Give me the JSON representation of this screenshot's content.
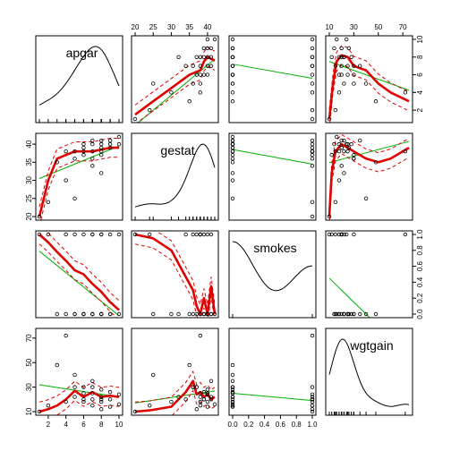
{
  "chart_data": {
    "type": "scatter-matrix",
    "variables": [
      {
        "name": "apgar",
        "ticks": [
          2,
          4,
          6,
          8,
          10
        ],
        "range": [
          1,
          10
        ]
      },
      {
        "name": "gestat",
        "ticks": [
          20,
          25,
          30,
          35,
          40
        ],
        "range": [
          20,
          42
        ]
      },
      {
        "name": "smokes",
        "ticks": [
          0.0,
          0.2,
          0.4,
          0.6,
          0.8,
          1.0
        ],
        "range": [
          0,
          1
        ]
      },
      {
        "name": "wgtgain",
        "ticks": [
          10,
          30,
          50,
          70
        ],
        "range": [
          10,
          75
        ]
      }
    ],
    "data": {
      "apgar": [
        1,
        2,
        4,
        4,
        5,
        5,
        5,
        6,
        6,
        6,
        7,
        7,
        7,
        7,
        8,
        8,
        8,
        8,
        8,
        9,
        9,
        9,
        10,
        10,
        3,
        7,
        8,
        6
      ],
      "gestat": [
        20,
        24,
        30,
        38,
        36,
        38,
        25,
        38,
        39,
        40,
        36,
        38,
        40,
        41,
        38,
        39,
        40,
        37,
        41,
        40,
        41,
        39,
        40,
        42,
        35,
        34,
        32,
        37
      ],
      "smokes": [
        1,
        1,
        0,
        1,
        0,
        1,
        0,
        0,
        1,
        0,
        1,
        0,
        0,
        0,
        1,
        0,
        0,
        1,
        0,
        0,
        1,
        0,
        1,
        0,
        0,
        1,
        0,
        0
      ],
      "wgtgain": [
        10,
        15,
        18,
        72,
        30,
        22,
        40,
        25,
        20,
        18,
        30,
        15,
        25,
        35,
        18,
        20,
        28,
        12,
        22,
        14,
        20,
        26,
        24,
        16,
        48,
        20,
        22,
        30
      ]
    },
    "smooths": {
      "apgar_vs_gestat": {
        "x": [
          20,
          25,
          30,
          35,
          38,
          39,
          40,
          41,
          42
        ],
        "y": [
          1.5,
          3,
          4.5,
          6,
          6.5,
          7.5,
          8,
          7.8,
          7.6
        ]
      },
      "apgar_vs_wgtgain": {
        "x": [
          10,
          13,
          16,
          20,
          25,
          30,
          40,
          50,
          60,
          75
        ],
        "y": [
          1,
          5,
          7.5,
          8.2,
          8,
          7,
          6.5,
          5,
          4,
          3
        ]
      },
      "gestat_vs_apgar": {
        "x": [
          1,
          2,
          3,
          4,
          5,
          6,
          7,
          8,
          9,
          10
        ],
        "y": [
          20,
          30,
          36,
          37,
          38,
          38,
          38,
          38.5,
          39,
          39
        ]
      },
      "gestat_vs_wgtgain": {
        "x": [
          10,
          12,
          15,
          20,
          25,
          30,
          40,
          50,
          60,
          75
        ],
        "y": [
          20,
          32,
          38,
          40,
          39,
          38,
          36,
          35,
          36,
          39
        ]
      },
      "smokes_vs_apgar": {
        "x": [
          1,
          2,
          3,
          4,
          5,
          6,
          7,
          8,
          9,
          10
        ],
        "y": [
          1,
          0.9,
          0.78,
          0.67,
          0.55,
          0.5,
          0.38,
          0.28,
          0.15,
          0.05
        ]
      },
      "smokes_vs_gestat": {
        "x": [
          20,
          25,
          30,
          33,
          36,
          37,
          38,
          39,
          40,
          41,
          42
        ],
        "y": [
          1,
          0.95,
          0.8,
          0.55,
          0.3,
          0.1,
          0,
          0.2,
          0,
          0.35,
          0
        ]
      },
      "wgtgain_vs_apgar": {
        "x": [
          1,
          2,
          3,
          4,
          5,
          6,
          7,
          8,
          9,
          10
        ],
        "y": [
          10,
          12,
          15,
          20,
          27,
          22,
          26,
          22,
          23,
          22
        ]
      },
      "wgtgain_vs_gestat": {
        "x": [
          20,
          24,
          30,
          34,
          36,
          37,
          38,
          39,
          40,
          41,
          42
        ],
        "y": [
          10,
          11,
          14,
          26,
          35,
          24,
          26,
          22,
          24,
          20,
          22
        ]
      }
    },
    "linear_fits": {
      "apgar_vs_gestat": {
        "intercept": -6.5,
        "slope": 0.34
      },
      "apgar_vs_smokes": {
        "intercept": 7.2,
        "slope": -1.6
      },
      "apgar_vs_wgtgain": {
        "intercept": 8.0,
        "slope": -0.05
      },
      "gestat_vs_apgar": {
        "intercept": 29.5,
        "slope": 1.0
      },
      "gestat_vs_smokes": {
        "intercept": 38.5,
        "slope": -4.0
      },
      "gestat_vs_wgtgain": {
        "intercept": 34.0,
        "slope": 0.09
      },
      "smokes_vs_apgar": {
        "intercept": 0.88,
        "slope": -0.09
      },
      "smokes_vs_wgtgain": {
        "intercept": 0.6,
        "slope": -0.015
      },
      "wgtgain_vs_apgar": {
        "intercept": 33.0,
        "slope": -1.1
      },
      "wgtgain_vs_gestat": {
        "intercept": 8.0,
        "slope": 0.45
      },
      "wgtgain_vs_smokes": {
        "intercept": 25.0,
        "slope": -6.0
      }
    }
  }
}
